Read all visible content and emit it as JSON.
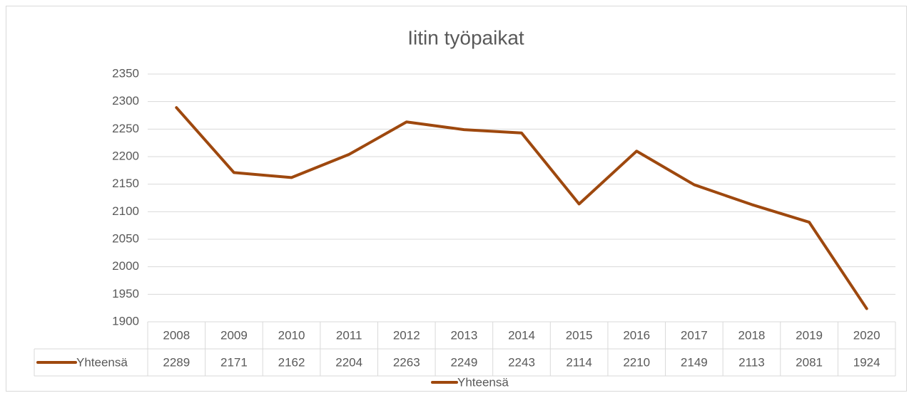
{
  "chart_data": {
    "type": "line",
    "title": "Iitin työpaikat",
    "categories": [
      "2008",
      "2009",
      "2010",
      "2011",
      "2012",
      "2013",
      "2014",
      "2015",
      "2016",
      "2017",
      "2018",
      "2019",
      "2020"
    ],
    "series": [
      {
        "name": "Yhteensä",
        "color": "#9e480e",
        "values": [
          2289,
          2171,
          2162,
          2204,
          2263,
          2249,
          2243,
          2114,
          2210,
          2149,
          2113,
          2081,
          1924
        ]
      }
    ],
    "ylim": [
      1900,
      2350
    ],
    "yticks": [
      1900,
      1950,
      2000,
      2050,
      2100,
      2150,
      2200,
      2250,
      2300,
      2350
    ],
    "grid": true,
    "data_table": true,
    "legend": "bottom"
  }
}
